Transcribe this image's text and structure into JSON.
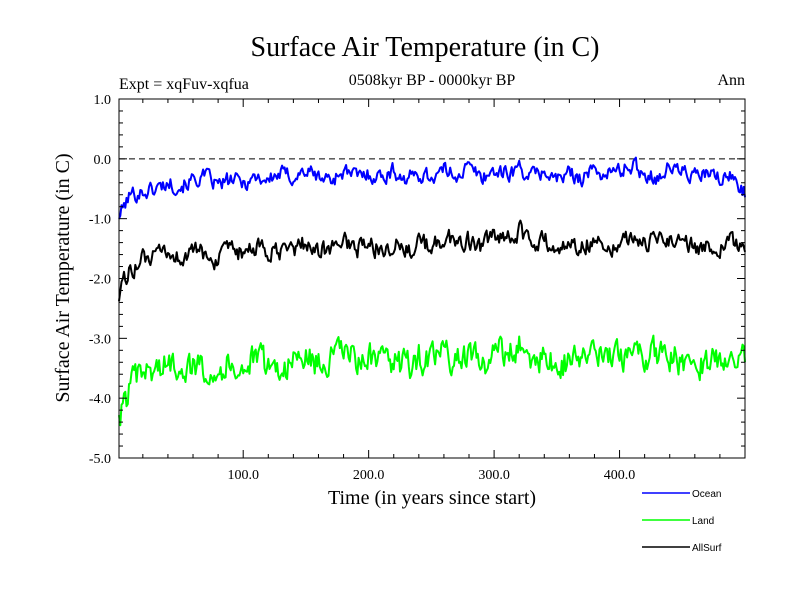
{
  "chart_data": {
    "type": "line",
    "title": "Surface Air Temperature (in C)",
    "subtitle": "0508kyr BP - 0000kyr BP",
    "left_label": "Expt = xqFuv-xqfua",
    "right_label": "Ann",
    "xlabel": "Time (in years since start)",
    "ylabel": "Surface Air Temperature (in C)",
    "xlim": [
      1,
      500
    ],
    "ylim": [
      -5.0,
      1.0
    ],
    "x_ticks": [
      100,
      200,
      300,
      400
    ],
    "x_tick_labels": [
      "100.0",
      "200.0",
      "300.0",
      "400.0"
    ],
    "y_ticks": [
      1.0,
      0.0,
      -1.0,
      -2.0,
      -3.0,
      -4.0,
      -5.0
    ],
    "y_tick_labels": [
      "1.0",
      "0.0",
      "-1.0",
      "-2.0",
      "-3.0",
      "-4.0",
      "-5.0"
    ],
    "reference_line": 0.0,
    "legend_position": "bottom-right, outside plot",
    "series": [
      {
        "name": "Ocean",
        "color": "#0000ff",
        "x": [
          1,
          10,
          20,
          30,
          40,
          50,
          60,
          70,
          80,
          90,
          100,
          110,
          120,
          130,
          140,
          150,
          160,
          170,
          180,
          190,
          200,
          210,
          220,
          230,
          240,
          250,
          260,
          270,
          280,
          290,
          300,
          310,
          320,
          330,
          340,
          350,
          360,
          370,
          380,
          390,
          400,
          410,
          420,
          430,
          440,
          450,
          460,
          470,
          480,
          490,
          500
        ],
        "values": [
          -0.95,
          -0.6,
          -0.55,
          -0.5,
          -0.4,
          -0.45,
          -0.35,
          -0.3,
          -0.45,
          -0.35,
          -0.4,
          -0.3,
          -0.35,
          -0.25,
          -0.3,
          -0.2,
          -0.3,
          -0.35,
          -0.2,
          -0.3,
          -0.25,
          -0.3,
          -0.2,
          -0.35,
          -0.25,
          -0.3,
          -0.2,
          -0.25,
          -0.15,
          -0.3,
          -0.2,
          -0.25,
          -0.15,
          -0.3,
          -0.2,
          -0.35,
          -0.25,
          -0.3,
          -0.2,
          -0.25,
          -0.2,
          -0.1,
          -0.25,
          -0.3,
          -0.15,
          -0.2,
          -0.3,
          -0.25,
          -0.35,
          -0.3,
          -0.55
        ]
      },
      {
        "name": "Land",
        "color": "#00ff00",
        "x": [
          1,
          10,
          20,
          30,
          40,
          50,
          60,
          70,
          80,
          90,
          100,
          110,
          120,
          130,
          140,
          150,
          160,
          170,
          180,
          190,
          200,
          210,
          220,
          230,
          240,
          250,
          260,
          270,
          280,
          290,
          300,
          310,
          320,
          330,
          340,
          350,
          360,
          370,
          380,
          390,
          400,
          410,
          420,
          430,
          440,
          450,
          460,
          470,
          480,
          490,
          500
        ],
        "values": [
          -4.35,
          -3.8,
          -3.6,
          -3.5,
          -3.45,
          -3.4,
          -3.5,
          -3.45,
          -3.55,
          -3.4,
          -3.5,
          -3.35,
          -3.45,
          -3.5,
          -3.4,
          -3.3,
          -3.45,
          -3.35,
          -3.2,
          -3.4,
          -3.3,
          -3.45,
          -3.35,
          -3.5,
          -3.3,
          -3.4,
          -3.25,
          -3.35,
          -3.3,
          -3.45,
          -3.2,
          -3.3,
          -3.1,
          -3.4,
          -3.3,
          -3.5,
          -3.35,
          -3.3,
          -3.25,
          -3.4,
          -3.3,
          -3.2,
          -3.35,
          -3.25,
          -3.3,
          -3.4,
          -3.35,
          -3.45,
          -3.3,
          -3.2,
          -3.4
        ]
      },
      {
        "name": "AllSurf",
        "color": "#000000",
        "x": [
          1,
          10,
          20,
          30,
          40,
          50,
          60,
          70,
          80,
          90,
          100,
          110,
          120,
          130,
          140,
          150,
          160,
          170,
          180,
          190,
          200,
          210,
          220,
          230,
          240,
          250,
          260,
          270,
          280,
          290,
          300,
          310,
          320,
          330,
          340,
          350,
          360,
          370,
          380,
          390,
          400,
          410,
          420,
          430,
          440,
          450,
          460,
          470,
          480,
          490,
          500
        ],
        "values": [
          -2.25,
          -1.85,
          -1.7,
          -1.65,
          -1.6,
          -1.65,
          -1.55,
          -1.6,
          -1.7,
          -1.55,
          -1.6,
          -1.5,
          -1.55,
          -1.6,
          -1.5,
          -1.4,
          -1.55,
          -1.5,
          -1.35,
          -1.5,
          -1.45,
          -1.5,
          -1.4,
          -1.55,
          -1.4,
          -1.5,
          -1.3,
          -1.4,
          -1.35,
          -1.5,
          -1.3,
          -1.4,
          -1.2,
          -1.45,
          -1.35,
          -1.55,
          -1.4,
          -1.45,
          -1.35,
          -1.45,
          -1.4,
          -1.3,
          -1.45,
          -1.35,
          -1.3,
          -1.4,
          -1.45,
          -1.5,
          -1.45,
          -1.4,
          -1.6
        ]
      }
    ]
  }
}
